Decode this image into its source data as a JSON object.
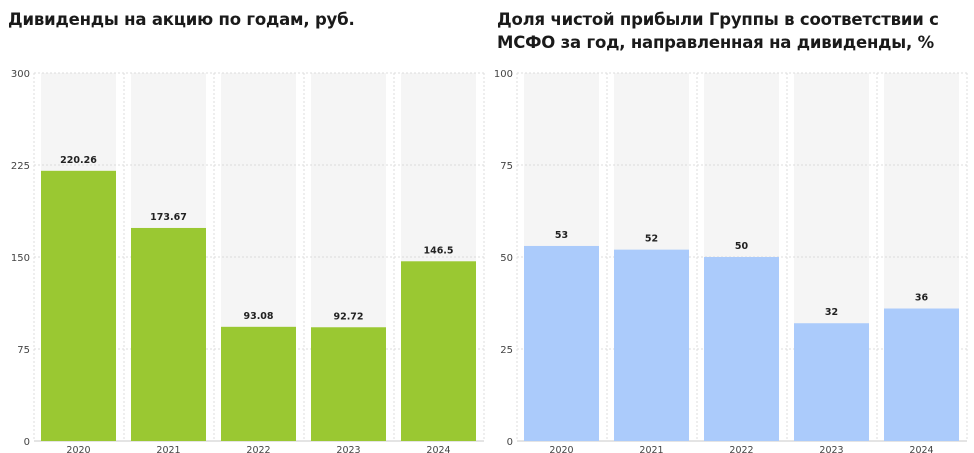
{
  "chart_data": [
    {
      "type": "bar",
      "title": "Дивиденды на акцию по годам, руб.",
      "categories": [
        "2020",
        "2021",
        "2022",
        "2023",
        "2024"
      ],
      "values": [
        220.26,
        173.67,
        93.08,
        92.72,
        146.5
      ],
      "value_labels": [
        "220.26",
        "173.67",
        "93.08",
        "92.72",
        "146.5"
      ],
      "yticks": [
        "0",
        "75",
        "150",
        "225",
        "300"
      ],
      "ylim": [
        0,
        300
      ],
      "color": "#9ac832",
      "grid": true,
      "xlabel": "",
      "ylabel": ""
    },
    {
      "type": "bar",
      "title": "Доля чистой прибыли Группы в соответствии с МСФО за год, направленная на дивиденды, %",
      "categories": [
        "2020",
        "2021",
        "2022",
        "2023",
        "2024"
      ],
      "values": [
        53,
        52,
        50,
        32,
        36
      ],
      "value_labels": [
        "53",
        "52",
        "50",
        "32",
        "36"
      ],
      "yticks": [
        "0",
        "25",
        "50",
        "75",
        "100"
      ],
      "ylim": [
        0,
        100
      ],
      "color": "#abcbfb",
      "grid": true,
      "xlabel": "",
      "ylabel": ""
    }
  ]
}
